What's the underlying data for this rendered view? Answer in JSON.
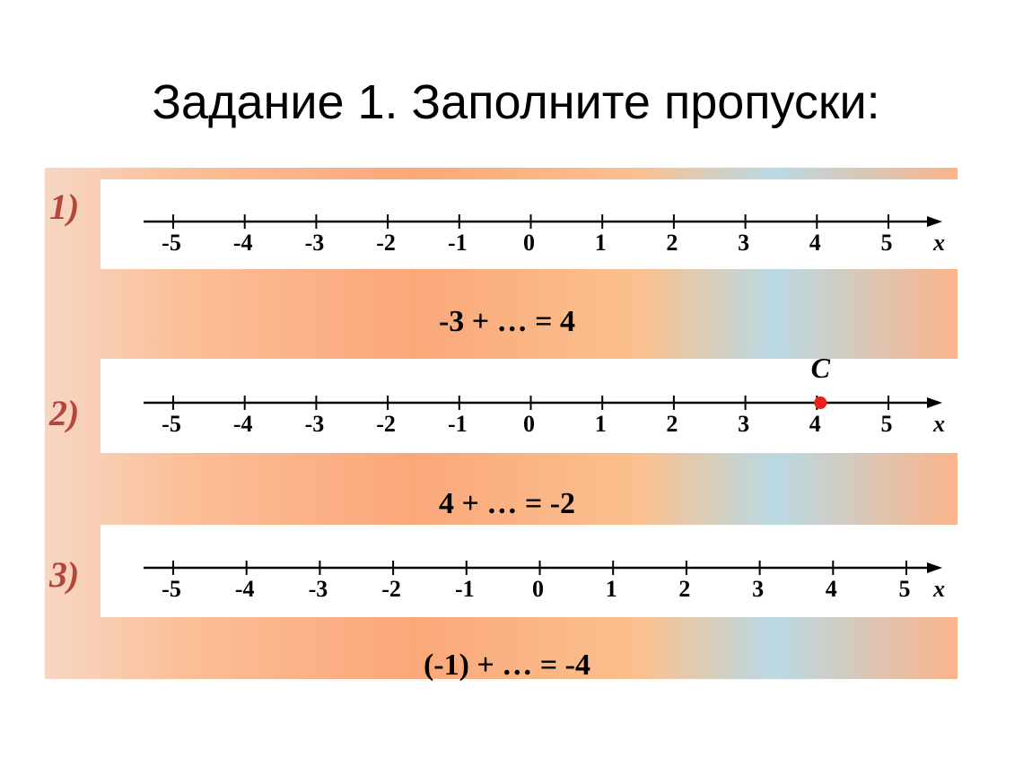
{
  "title": "Задание 1. Заполните пропуски:",
  "tasks": [
    {
      "number": "1)",
      "ticks": [
        -5,
        -4,
        -3,
        -2,
        -1,
        0,
        1,
        2,
        3,
        4,
        5
      ],
      "axis_label": "x",
      "equation": "-3 + … = 4"
    },
    {
      "number": "2)",
      "ticks": [
        -5,
        -4,
        -3,
        -2,
        -1,
        0,
        1,
        2,
        3,
        4,
        5
      ],
      "axis_label": "x",
      "point": {
        "label": "C",
        "value": 4
      },
      "equation": "4 + … = -2"
    },
    {
      "number": "3)",
      "ticks": [
        -5,
        -4,
        -3,
        -2,
        -1,
        0,
        1,
        2,
        3,
        4,
        5
      ],
      "axis_label": "x",
      "equation": "(-1) + … = -4"
    }
  ]
}
